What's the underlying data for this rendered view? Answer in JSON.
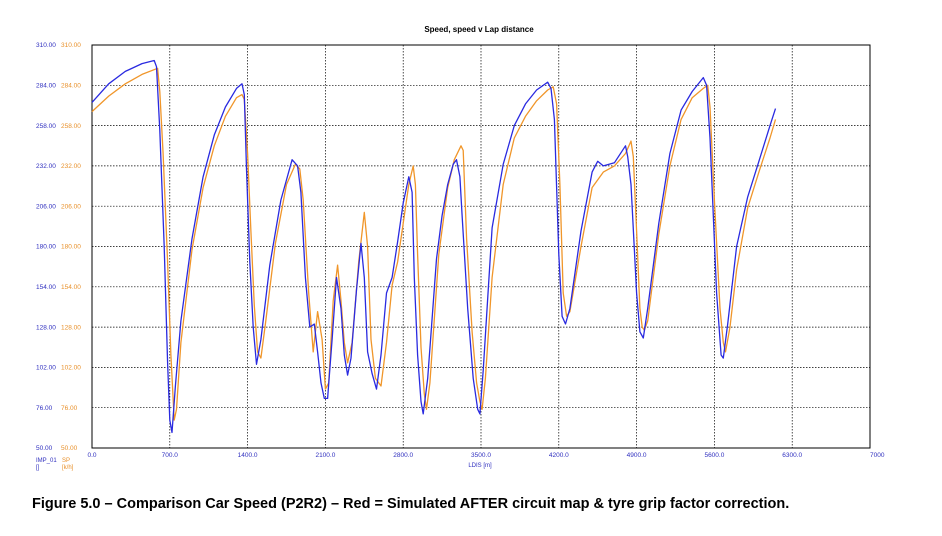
{
  "caption": "Figure 5.0 – Comparison Car Speed (P2R2) – Red = Simulated AFTER circuit map & tyre grip factor correction.",
  "colors": {
    "blue": "#2a2ae0",
    "orange": "#f0962a",
    "grid": "#000000",
    "tick_blue": "#2f2fbf",
    "tick_orange": "#e8902a"
  },
  "chart_data": {
    "type": "line",
    "title": "Speed, speed v Lap distance",
    "xlabel": "LDIS [m]",
    "ylabel": "",
    "xlim": [
      0,
      7000
    ],
    "ylim": [
      50,
      310
    ],
    "grid": true,
    "x_ticks": [
      "0.0",
      "700.0",
      "1400.0",
      "2100.0",
      "2800.0",
      "3500.0",
      "4200.0",
      "4900.0",
      "5600.0",
      "6300.0",
      "7000"
    ],
    "y_ticks_left": [
      "50.00",
      "76.00",
      "102.00",
      "128.00",
      "154.00",
      "180.00",
      "206.00",
      "232.00",
      "258.00",
      "284.00",
      "310.00"
    ],
    "y_ticks_right": [
      "50.00",
      "76.00",
      "102.00",
      "128.00",
      "154.00",
      "180.00",
      "206.00",
      "232.00",
      "258.00",
      "284.00",
      "310.00"
    ],
    "channel_labels": {
      "left_name": "IMP_01",
      "left_unit": "[]",
      "right_name": "SP",
      "right_unit": "[k/h]"
    },
    "series": [
      {
        "color": "#2a2ae0",
        "points": [
          [
            0,
            273
          ],
          [
            150,
            285
          ],
          [
            300,
            293
          ],
          [
            450,
            298
          ],
          [
            560,
            300
          ],
          [
            580,
            296
          ],
          [
            610,
            255
          ],
          [
            650,
            180
          ],
          [
            680,
            105
          ],
          [
            700,
            68
          ],
          [
            720,
            60
          ],
          [
            750,
            90
          ],
          [
            800,
            132
          ],
          [
            900,
            185
          ],
          [
            1000,
            225
          ],
          [
            1100,
            252
          ],
          [
            1200,
            270
          ],
          [
            1300,
            282
          ],
          [
            1350,
            285
          ],
          [
            1370,
            278
          ],
          [
            1390,
            230
          ],
          [
            1420,
            170
          ],
          [
            1450,
            128
          ],
          [
            1480,
            104
          ],
          [
            1520,
            120
          ],
          [
            1600,
            168
          ],
          [
            1700,
            210
          ],
          [
            1800,
            236
          ],
          [
            1850,
            232
          ],
          [
            1880,
            215
          ],
          [
            1920,
            160
          ],
          [
            1960,
            128
          ],
          [
            2000,
            130
          ],
          [
            2030,
            112
          ],
          [
            2060,
            92
          ],
          [
            2090,
            82
          ],
          [
            2120,
            82
          ],
          [
            2160,
            120
          ],
          [
            2200,
            160
          ],
          [
            2240,
            140
          ],
          [
            2270,
            110
          ],
          [
            2300,
            97
          ],
          [
            2330,
            108
          ],
          [
            2380,
            152
          ],
          [
            2420,
            182
          ],
          [
            2450,
            160
          ],
          [
            2480,
            112
          ],
          [
            2520,
            98
          ],
          [
            2560,
            88
          ],
          [
            2600,
            110
          ],
          [
            2650,
            150
          ],
          [
            2700,
            160
          ],
          [
            2750,
            183
          ],
          [
            2800,
            208
          ],
          [
            2850,
            225
          ],
          [
            2880,
            215
          ],
          [
            2900,
            160
          ],
          [
            2930,
            110
          ],
          [
            2960,
            80
          ],
          [
            2980,
            72
          ],
          [
            3020,
            95
          ],
          [
            3100,
            172
          ],
          [
            3150,
            200
          ],
          [
            3200,
            220
          ],
          [
            3250,
            233
          ],
          [
            3280,
            236
          ],
          [
            3310,
            225
          ],
          [
            3330,
            200
          ],
          [
            3380,
            140
          ],
          [
            3430,
            95
          ],
          [
            3470,
            75
          ],
          [
            3490,
            72
          ],
          [
            3520,
            100
          ],
          [
            3600,
            192
          ],
          [
            3700,
            233
          ],
          [
            3800,
            258
          ],
          [
            3900,
            272
          ],
          [
            4000,
            281
          ],
          [
            4100,
            286
          ],
          [
            4130,
            282
          ],
          [
            4160,
            262
          ],
          [
            4200,
            175
          ],
          [
            4230,
            135
          ],
          [
            4260,
            130
          ],
          [
            4300,
            140
          ],
          [
            4400,
            190
          ],
          [
            4500,
            228
          ],
          [
            4550,
            235
          ],
          [
            4600,
            232
          ],
          [
            4700,
            234
          ],
          [
            4800,
            245
          ],
          [
            4820,
            238
          ],
          [
            4850,
            220
          ],
          [
            4900,
            150
          ],
          [
            4930,
            125
          ],
          [
            4960,
            121
          ],
          [
            5000,
            140
          ],
          [
            5100,
            195
          ],
          [
            5200,
            240
          ],
          [
            5300,
            268
          ],
          [
            5400,
            280
          ],
          [
            5500,
            289
          ],
          [
            5530,
            284
          ],
          [
            5560,
            250
          ],
          [
            5620,
            150
          ],
          [
            5660,
            110
          ],
          [
            5680,
            108
          ],
          [
            5720,
            130
          ],
          [
            5800,
            180
          ],
          [
            5900,
            212
          ],
          [
            6000,
            235
          ],
          [
            6100,
            258
          ],
          [
            6150,
            269
          ]
        ]
      },
      {
        "color": "#f0962a",
        "points": [
          [
            0,
            267
          ],
          [
            150,
            277
          ],
          [
            300,
            285
          ],
          [
            450,
            291
          ],
          [
            590,
            295
          ],
          [
            610,
            280
          ],
          [
            640,
            240
          ],
          [
            680,
            170
          ],
          [
            710,
            110
          ],
          [
            740,
            68
          ],
          [
            760,
            75
          ],
          [
            800,
            118
          ],
          [
            900,
            178
          ],
          [
            1000,
            218
          ],
          [
            1100,
            245
          ],
          [
            1200,
            264
          ],
          [
            1300,
            276
          ],
          [
            1350,
            278
          ],
          [
            1370,
            275
          ],
          [
            1400,
            240
          ],
          [
            1430,
            190
          ],
          [
            1460,
            142
          ],
          [
            1490,
            112
          ],
          [
            1520,
            108
          ],
          [
            1560,
            130
          ],
          [
            1650,
            182
          ],
          [
            1750,
            220
          ],
          [
            1830,
            233
          ],
          [
            1870,
            230
          ],
          [
            1900,
            210
          ],
          [
            1950,
            150
          ],
          [
            1990,
            112
          ],
          [
            2030,
            138
          ],
          [
            2070,
            120
          ],
          [
            2100,
            88
          ],
          [
            2130,
            92
          ],
          [
            2170,
            145
          ],
          [
            2210,
            168
          ],
          [
            2240,
            145
          ],
          [
            2270,
            118
          ],
          [
            2300,
            105
          ],
          [
            2340,
            118
          ],
          [
            2400,
            170
          ],
          [
            2450,
            202
          ],
          [
            2480,
            180
          ],
          [
            2510,
            120
          ],
          [
            2550,
            95
          ],
          [
            2600,
            90
          ],
          [
            2650,
            118
          ],
          [
            2700,
            155
          ],
          [
            2750,
            170
          ],
          [
            2800,
            195
          ],
          [
            2850,
            220
          ],
          [
            2890,
            232
          ],
          [
            2910,
            220
          ],
          [
            2930,
            175
          ],
          [
            2960,
            115
          ],
          [
            2990,
            85
          ],
          [
            3010,
            75
          ],
          [
            3040,
            92
          ],
          [
            3120,
            175
          ],
          [
            3200,
            218
          ],
          [
            3260,
            236
          ],
          [
            3320,
            245
          ],
          [
            3340,
            242
          ],
          [
            3370,
            185
          ],
          [
            3420,
            125
          ],
          [
            3460,
            92
          ],
          [
            3490,
            80
          ],
          [
            3510,
            75
          ],
          [
            3540,
            95
          ],
          [
            3600,
            160
          ],
          [
            3700,
            220
          ],
          [
            3800,
            250
          ],
          [
            3900,
            264
          ],
          [
            4000,
            274
          ],
          [
            4100,
            281
          ],
          [
            4150,
            283
          ],
          [
            4180,
            272
          ],
          [
            4210,
            220
          ],
          [
            4240,
            150
          ],
          [
            4270,
            135
          ],
          [
            4300,
            138
          ],
          [
            4400,
            180
          ],
          [
            4500,
            218
          ],
          [
            4600,
            228
          ],
          [
            4700,
            232
          ],
          [
            4800,
            240
          ],
          [
            4850,
            248
          ],
          [
            4870,
            238
          ],
          [
            4900,
            190
          ],
          [
            4930,
            140
          ],
          [
            4950,
            128
          ],
          [
            4970,
            126
          ],
          [
            5000,
            132
          ],
          [
            5100,
            188
          ],
          [
            5200,
            232
          ],
          [
            5300,
            262
          ],
          [
            5400,
            276
          ],
          [
            5500,
            282
          ],
          [
            5540,
            284
          ],
          [
            5560,
            270
          ],
          [
            5600,
            210
          ],
          [
            5650,
            140
          ],
          [
            5680,
            118
          ],
          [
            5700,
            112
          ],
          [
            5740,
            128
          ],
          [
            5800,
            165
          ],
          [
            5900,
            205
          ],
          [
            6000,
            228
          ],
          [
            6100,
            250
          ],
          [
            6150,
            262
          ]
        ]
      }
    ]
  }
}
